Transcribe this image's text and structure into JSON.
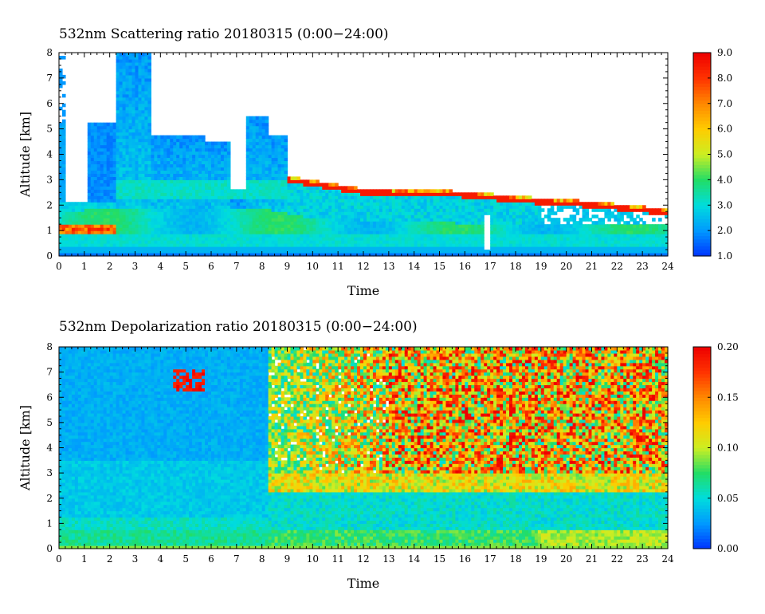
{
  "chart_data": [
    {
      "type": "heatmap",
      "title": "532nm Scattering ratio  20180315 (0:00−24:00)",
      "xlabel": "Time",
      "ylabel": "Altitude [km]",
      "xlim": [
        0,
        24
      ],
      "ylim": [
        0,
        8
      ],
      "x_ticks": [
        "0",
        "1",
        "2",
        "3",
        "4",
        "5",
        "6",
        "7",
        "8",
        "9",
        "10",
        "11",
        "12",
        "13",
        "14",
        "15",
        "16",
        "17",
        "18",
        "19",
        "20",
        "21",
        "22",
        "23",
        "24"
      ],
      "y_ticks": [
        "0",
        "1",
        "2",
        "3",
        "4",
        "5",
        "6",
        "7",
        "8"
      ],
      "colorbar": {
        "range": [
          1.0,
          9.0
        ],
        "ticks": [
          "1.0",
          "2.0",
          "3.0",
          "4.0",
          "5.0",
          "6.0",
          "7.0",
          "8.0",
          "9.0"
        ],
        "colormap": [
          "#0033ff",
          "#0099ff",
          "#00dddd",
          "#22dd66",
          "#ccee22",
          "#ffcc00",
          "#ff8800",
          "#ff3300",
          "#ee0000"
        ]
      },
      "features": {
        "cloud_base_km": [
          [
            9.0,
            3.0
          ],
          [
            12.0,
            2.5
          ],
          [
            16.0,
            2.4
          ],
          [
            18.0,
            2.2
          ],
          [
            21.0,
            2.0
          ],
          [
            24.0,
            1.7
          ]
        ],
        "aerosol_layer_top_km": [
          [
            0,
            1.8
          ],
          [
            8,
            1.9
          ],
          [
            10,
            1.5
          ],
          [
            16,
            1.3
          ],
          [
            24,
            1.2
          ]
        ],
        "dense_aerosol_peak": {
          "time": [
            0.3,
            2.2
          ],
          "altitude": [
            0.9,
            1.3
          ],
          "value": 8.5
        }
      }
    },
    {
      "type": "heatmap",
      "title": "532nm Depolarization ratio  20180315 (0:00−24:00)",
      "xlabel": "Time",
      "ylabel": "Altitude [km]",
      "xlim": [
        0,
        24
      ],
      "ylim": [
        0,
        8
      ],
      "x_ticks": [
        "0",
        "1",
        "2",
        "3",
        "4",
        "5",
        "6",
        "7",
        "8",
        "9",
        "10",
        "11",
        "12",
        "13",
        "14",
        "15",
        "16",
        "17",
        "18",
        "19",
        "20",
        "21",
        "22",
        "23",
        "24"
      ],
      "y_ticks": [
        "0",
        "1",
        "2",
        "3",
        "4",
        "5",
        "6",
        "7",
        "8"
      ],
      "colorbar": {
        "range": [
          0.0,
          0.2
        ],
        "ticks": [
          "0.00",
          "0.05",
          "0.10",
          "0.15",
          "0.20"
        ],
        "colormap": [
          "#0033ff",
          "#0099ff",
          "#00dddd",
          "#22dd66",
          "#ccee22",
          "#ffcc00",
          "#ff8800",
          "#ff3300",
          "#ee0000"
        ]
      },
      "features": {
        "noisy_high_depol_region": {
          "time": [
            8.2,
            24
          ],
          "altitude": [
            3.0,
            8.0
          ]
        },
        "ice_cloud_patch": {
          "time": [
            4.5,
            5.7
          ],
          "altitude": [
            6.2,
            7.1
          ]
        }
      }
    }
  ]
}
